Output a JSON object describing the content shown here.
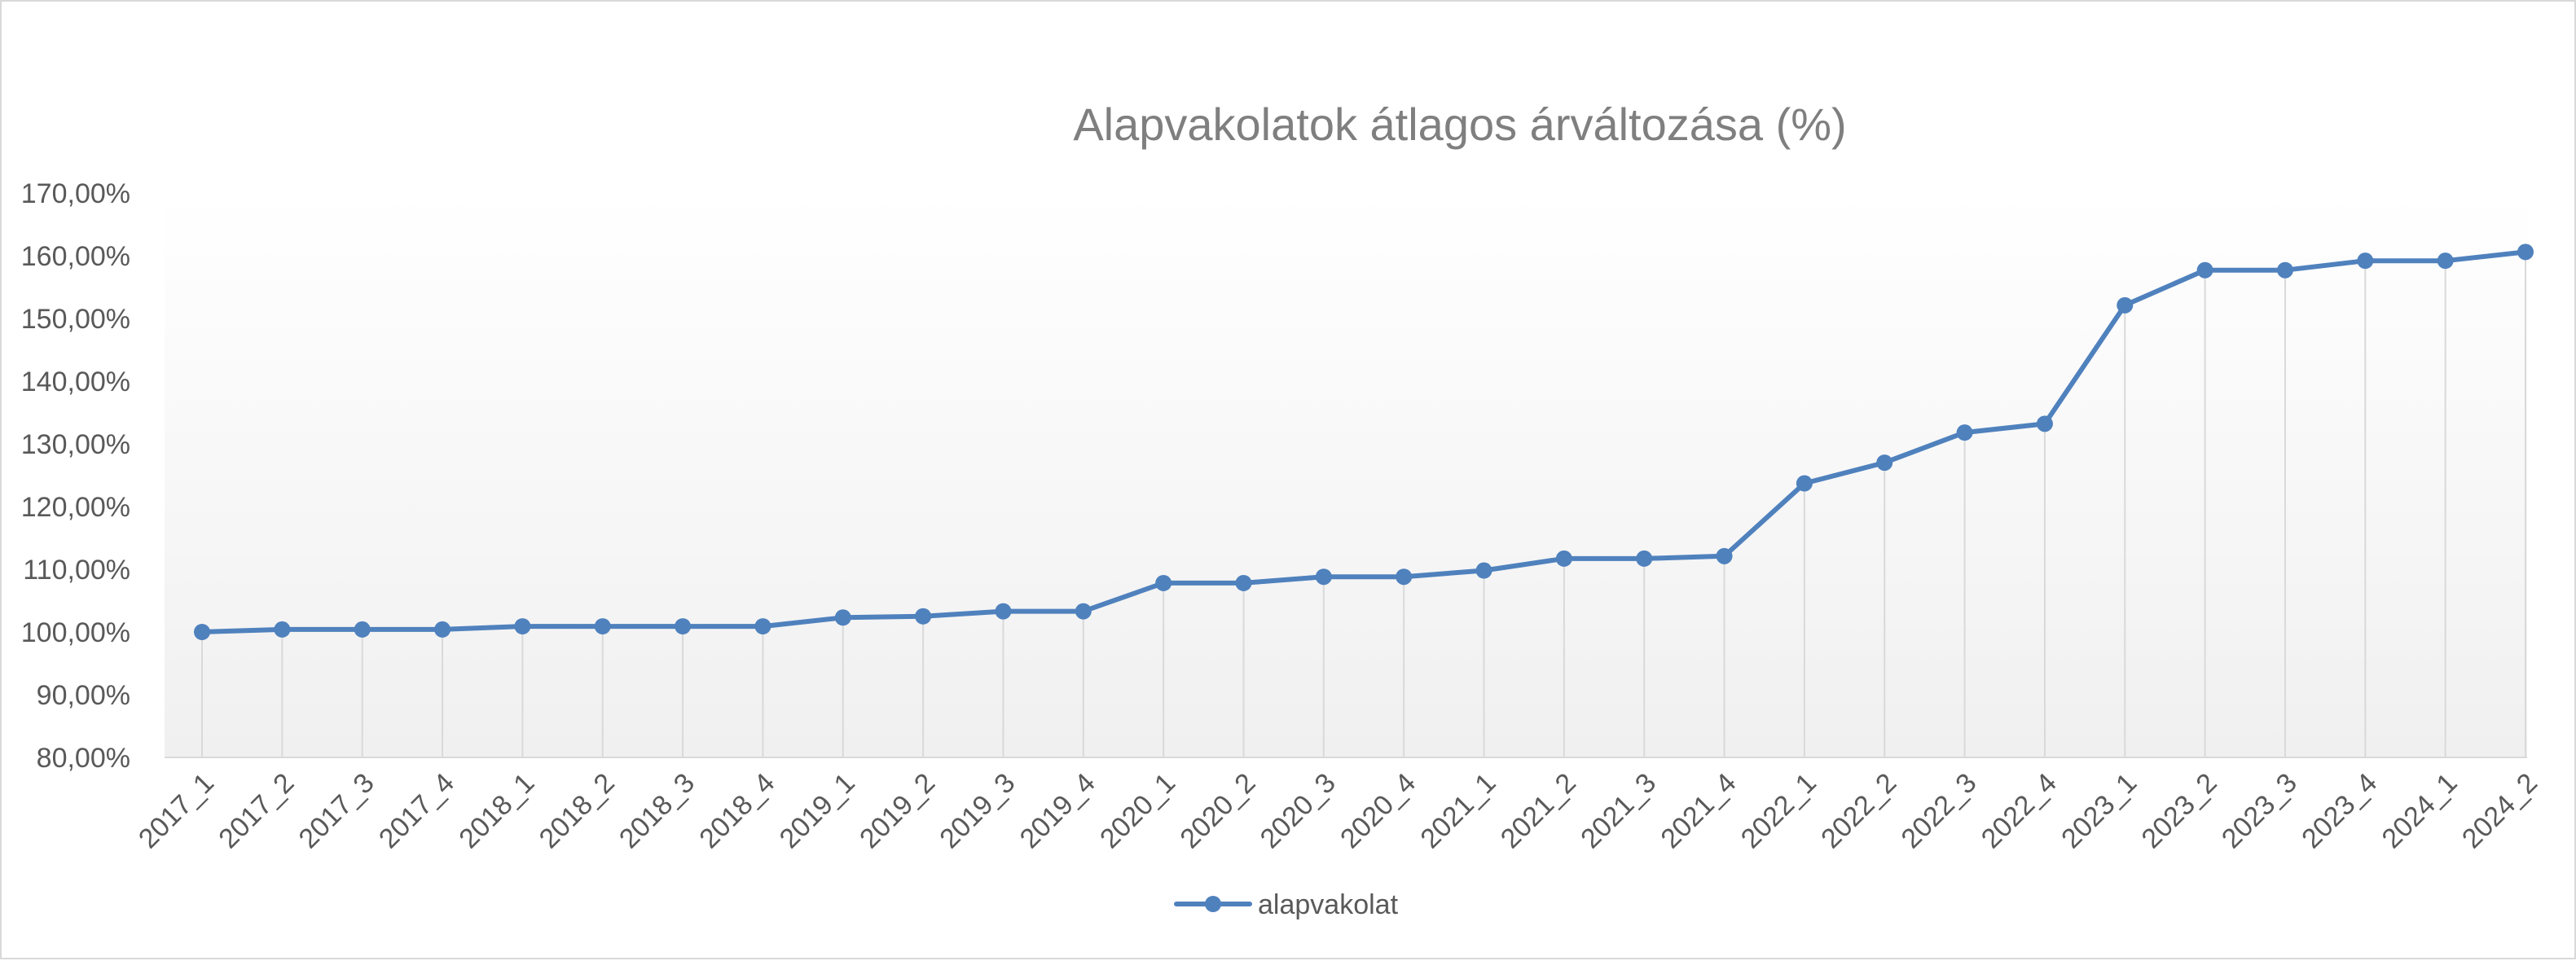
{
  "chart_data": {
    "type": "line",
    "title": "Alapvakolatok átlagos árváltozása (%)",
    "xlabel": "",
    "ylabel": "",
    "categories": [
      "2017_1",
      "2017_2",
      "2017_3",
      "2017_4",
      "2018_1",
      "2018_2",
      "2018_3",
      "2018_4",
      "2019_1",
      "2019_2",
      "2019_3",
      "2019_4",
      "2020_1",
      "2020_2",
      "2020_3",
      "2020_4",
      "2021_1",
      "2021_2",
      "2021_3",
      "2021_4",
      "2022_1",
      "2022_2",
      "2022_3",
      "2022_4",
      "2023_1",
      "2023_2",
      "2023_3",
      "2023_4",
      "2024_1",
      "2024_2"
    ],
    "series": [
      {
        "name": "alapvakolat",
        "color": "#4f81bd",
        "values": [
          100.0,
          100.4,
          100.4,
          100.4,
          100.9,
          100.9,
          100.9,
          100.9,
          102.3,
          102.5,
          103.3,
          103.3,
          107.8,
          107.8,
          108.8,
          108.8,
          109.8,
          111.7,
          111.7,
          112.1,
          123.7,
          127.0,
          131.8,
          133.2,
          152.1,
          157.7,
          157.7,
          159.2,
          159.2,
          160.6
        ]
      }
    ],
    "ylim": [
      80,
      170
    ],
    "y_ticks": [
      "80,00%",
      "90,00%",
      "100,00%",
      "110,00%",
      "120,00%",
      "130,00%",
      "140,00%",
      "150,00%",
      "160,00%",
      "170,00%"
    ],
    "y_tick_values": [
      80,
      90,
      100,
      110,
      120,
      130,
      140,
      150,
      160,
      170
    ],
    "drop_lines": true,
    "legend_position": "bottom",
    "colors": {
      "line": "#4f81bd",
      "drop_line": "#d9d9d9",
      "axis": "#d9d9d9",
      "title": "#7f7f7f",
      "text": "#595959"
    }
  }
}
